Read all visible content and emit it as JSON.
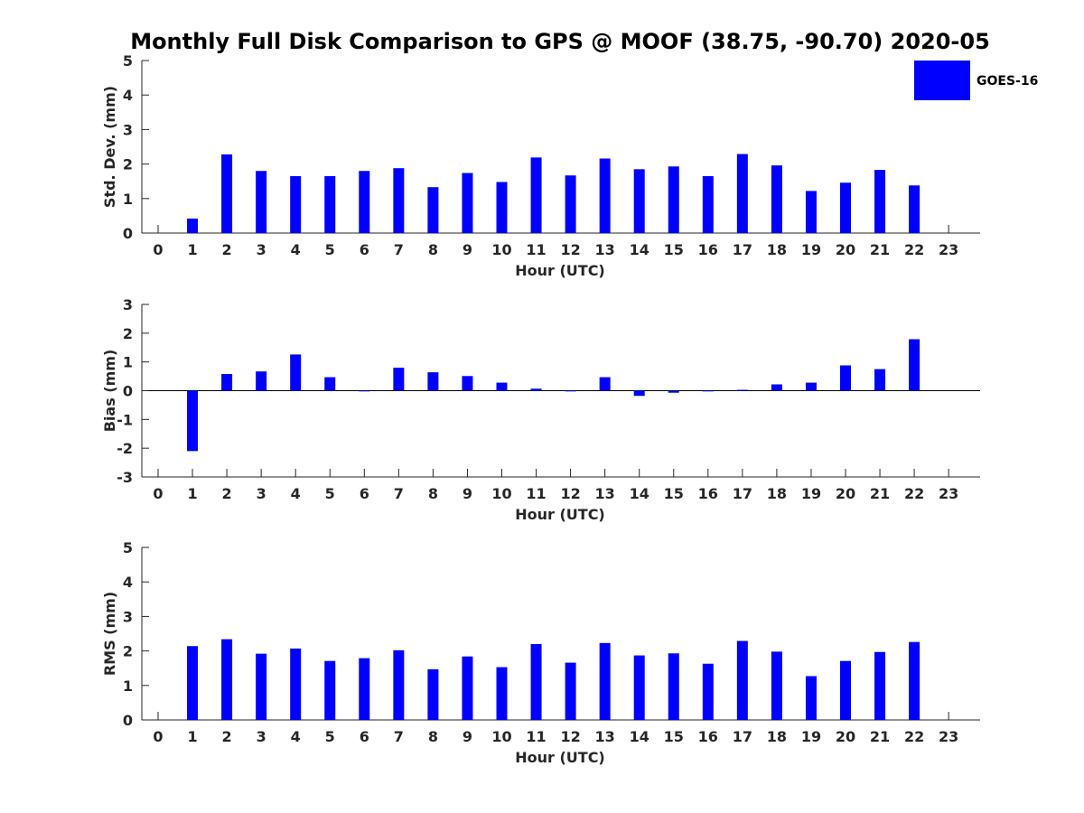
{
  "title": "Monthly Full Disk Comparison to GPS @ MOOF (38.75, -90.70) 2020-05",
  "colors": {
    "bar": "#0000ff",
    "axis": "#262626",
    "background": "#ffffff"
  },
  "legend": {
    "label": "GOES-16",
    "placement": "top-right"
  },
  "chart_data": [
    {
      "type": "bar",
      "name": "std-dev",
      "title": "",
      "xlabel": "Hour (UTC)",
      "ylabel": "Std. Dev. (mm)",
      "ylim": [
        0,
        5
      ],
      "yticks": [
        0,
        1,
        2,
        3,
        4,
        5
      ],
      "series": [
        {
          "name": "GOES-16",
          "color": "#0000ff"
        }
      ],
      "categories": [
        "0",
        "1",
        "2",
        "3",
        "4",
        "5",
        "6",
        "7",
        "8",
        "9",
        "10",
        "11",
        "12",
        "13",
        "14",
        "15",
        "16",
        "17",
        "18",
        "19",
        "20",
        "21",
        "22",
        "23"
      ],
      "values": [
        null,
        0.42,
        2.28,
        1.8,
        1.65,
        1.65,
        1.8,
        1.88,
        1.33,
        1.74,
        1.48,
        2.19,
        1.67,
        2.16,
        1.85,
        1.93,
        1.65,
        2.29,
        1.96,
        1.22,
        1.46,
        1.83,
        1.38,
        null
      ]
    },
    {
      "type": "bar",
      "name": "bias",
      "title": "",
      "xlabel": "Hour (UTC)",
      "ylabel": "Bias (mm)",
      "ylim": [
        -3,
        3
      ],
      "yticks": [
        -3,
        -2,
        -1,
        0,
        1,
        2,
        3
      ],
      "series": [
        {
          "name": "GOES-16",
          "color": "#0000ff"
        }
      ],
      "categories": [
        "0",
        "1",
        "2",
        "3",
        "4",
        "5",
        "6",
        "7",
        "8",
        "9",
        "10",
        "11",
        "12",
        "13",
        "14",
        "15",
        "16",
        "17",
        "18",
        "19",
        "20",
        "21",
        "22",
        "23"
      ],
      "values": [
        null,
        -2.1,
        0.58,
        0.67,
        1.26,
        0.47,
        -0.02,
        0.8,
        0.64,
        0.51,
        0.28,
        0.07,
        -0.02,
        0.47,
        -0.18,
        -0.07,
        0.0,
        0.03,
        0.22,
        0.28,
        0.88,
        0.75,
        1.79,
        null
      ]
    },
    {
      "type": "bar",
      "name": "rms",
      "title": "",
      "xlabel": "Hour (UTC)",
      "ylabel": "RMS (mm)",
      "ylim": [
        0,
        5
      ],
      "yticks": [
        0,
        1,
        2,
        3,
        4,
        5
      ],
      "series": [
        {
          "name": "GOES-16",
          "color": "#0000ff"
        }
      ],
      "categories": [
        "0",
        "1",
        "2",
        "3",
        "4",
        "5",
        "6",
        "7",
        "8",
        "9",
        "10",
        "11",
        "12",
        "13",
        "14",
        "15",
        "16",
        "17",
        "18",
        "19",
        "20",
        "21",
        "22",
        "23"
      ],
      "values": [
        null,
        2.14,
        2.34,
        1.92,
        2.07,
        1.71,
        1.79,
        2.02,
        1.47,
        1.84,
        1.53,
        2.2,
        1.66,
        2.23,
        1.87,
        1.93,
        1.63,
        2.29,
        1.98,
        1.27,
        1.71,
        1.97,
        2.26,
        null
      ]
    }
  ]
}
